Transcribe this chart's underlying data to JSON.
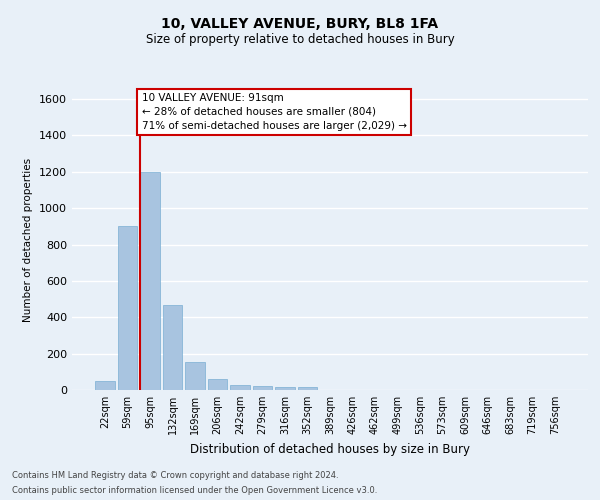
{
  "title": "10, VALLEY AVENUE, BURY, BL8 1FA",
  "subtitle": "Size of property relative to detached houses in Bury",
  "xlabel": "Distribution of detached houses by size in Bury",
  "ylabel": "Number of detached properties",
  "footer_line1": "Contains HM Land Registry data © Crown copyright and database right 2024.",
  "footer_line2": "Contains public sector information licensed under the Open Government Licence v3.0.",
  "annotation_line1": "10 VALLEY AVENUE: 91sqm",
  "annotation_line2": "← 28% of detached houses are smaller (804)",
  "annotation_line3": "71% of semi-detached houses are larger (2,029) →",
  "bar_labels": [
    "22sqm",
    "59sqm",
    "95sqm",
    "132sqm",
    "169sqm",
    "206sqm",
    "242sqm",
    "279sqm",
    "316sqm",
    "352sqm",
    "389sqm",
    "426sqm",
    "462sqm",
    "499sqm",
    "536sqm",
    "573sqm",
    "609sqm",
    "646sqm",
    "683sqm",
    "719sqm",
    "756sqm"
  ],
  "bar_values": [
    50,
    900,
    1200,
    470,
    155,
    60,
    30,
    20,
    18,
    15,
    0,
    0,
    0,
    0,
    0,
    0,
    0,
    0,
    0,
    0,
    0
  ],
  "bar_color": "#a8c4e0",
  "bar_edge_color": "#7aafd4",
  "vline_color": "#cc0000",
  "vline_bar_index": 2,
  "annotation_box_color": "#cc0000",
  "annotation_fill": "#ffffff",
  "background_color": "#e8f0f8",
  "grid_color": "#ffffff",
  "ylim": [
    0,
    1650
  ],
  "yticks": [
    0,
    200,
    400,
    600,
    800,
    1000,
    1200,
    1400,
    1600
  ]
}
